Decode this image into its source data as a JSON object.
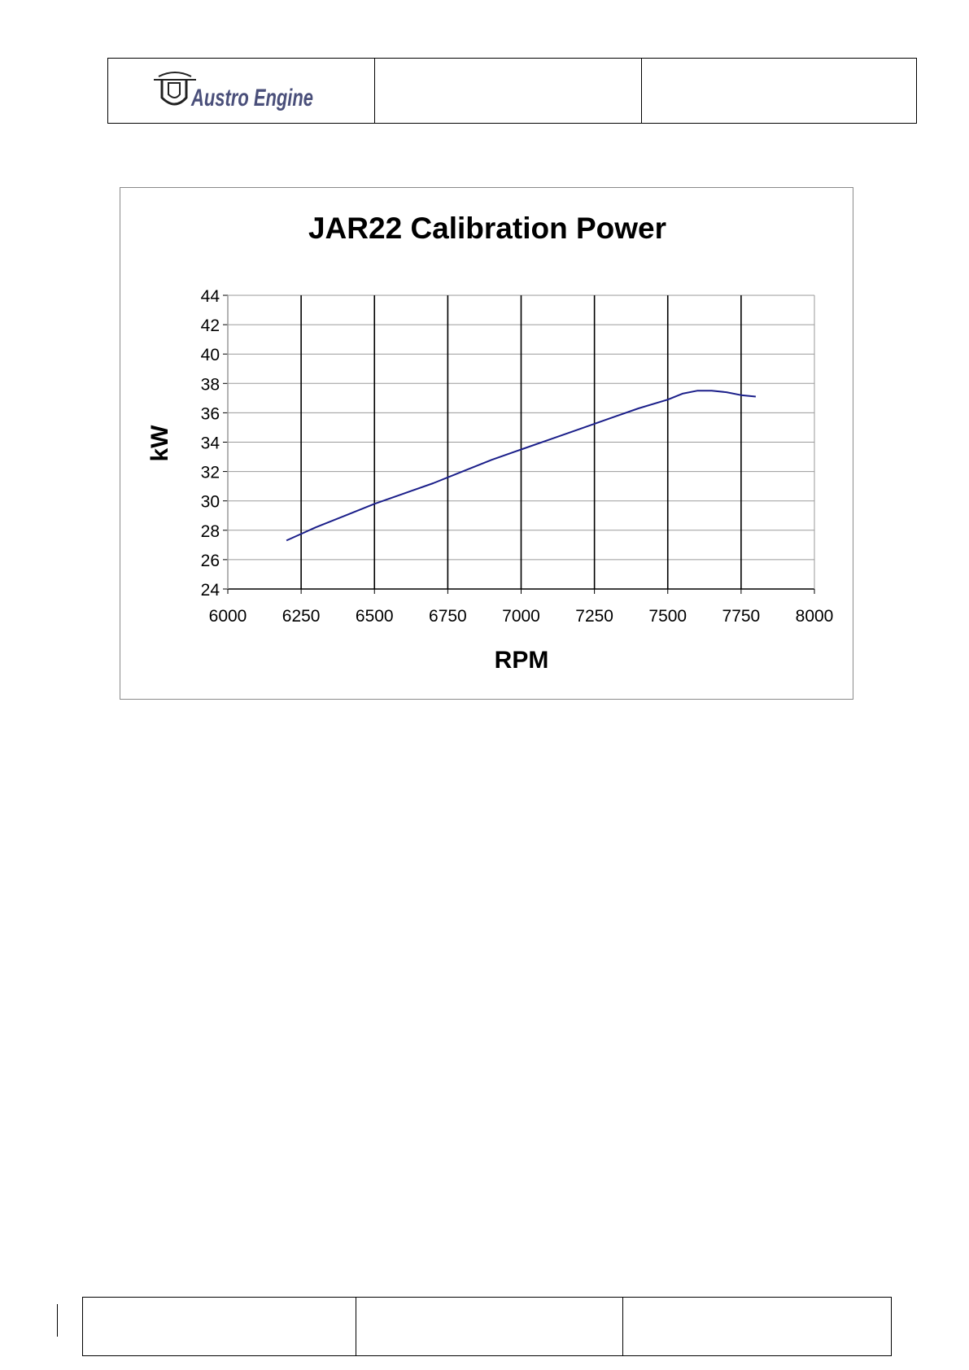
{
  "header": {
    "logo_text": "Austro Engine",
    "cell2": "",
    "cell3": ""
  },
  "footer": {
    "cell1": "",
    "cell2": "",
    "cell3": ""
  },
  "colors": {
    "line": "#1b1f8a",
    "grid": "#9a9a9a",
    "major_grid": "#000000",
    "logo": "#4a4f7a"
  },
  "chart_data": {
    "type": "line",
    "title": "JAR22 Calibration Power",
    "xlabel": "RPM",
    "ylabel": "kW",
    "xlim": [
      6000,
      8000
    ],
    "ylim": [
      24,
      44
    ],
    "x_ticks": [
      6000,
      6250,
      6500,
      6750,
      7000,
      7250,
      7500,
      7750,
      8000
    ],
    "y_ticks": [
      24,
      26,
      28,
      30,
      32,
      34,
      36,
      38,
      40,
      42,
      44
    ],
    "grid": true,
    "legend": "none",
    "series": [
      {
        "x": [
          6200,
          6300,
          6400,
          6500,
          6600,
          6700,
          6800,
          6900,
          7000,
          7100,
          7200,
          7300,
          7400,
          7500,
          7550,
          7600,
          7650,
          7700,
          7750,
          7800
        ],
        "y": [
          27.3,
          28.2,
          29.0,
          29.8,
          30.5,
          31.2,
          32.0,
          32.8,
          33.5,
          34.2,
          34.9,
          35.6,
          36.3,
          36.9,
          37.3,
          37.5,
          37.5,
          37.4,
          37.2,
          37.1
        ]
      }
    ]
  }
}
